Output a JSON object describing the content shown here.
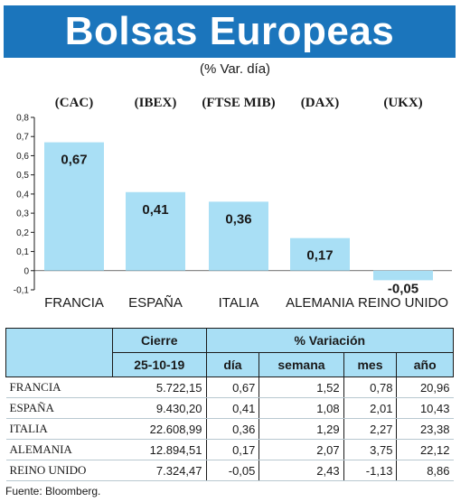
{
  "header": {
    "title": "Bolsas Europeas",
    "subtitle": "(% Var. día)"
  },
  "chart_data": {
    "type": "bar",
    "categories": [
      "FRANCIA",
      "ESPAÑA",
      "ITALIA",
      "ALEMANIA",
      "REINO UNIDO"
    ],
    "indices": [
      "(CAC)",
      "(IBEX)",
      "(FTSE MIB)",
      "(DAX)",
      "(UKX)"
    ],
    "values": [
      0.67,
      0.41,
      0.36,
      0.17,
      -0.05
    ],
    "value_labels": [
      "0,67",
      "0,41",
      "0,36",
      "0,17",
      "-0,05"
    ],
    "yticks": [
      "0,8",
      "0,7",
      "0,6",
      "0,5",
      "0,4",
      "0,3",
      "0,2",
      "0,1",
      "0",
      "-0,1"
    ],
    "ylim": [
      -0.1,
      0.8
    ],
    "bar_color": "#a9dff5",
    "grid": false
  },
  "table": {
    "header_cierre": "Cierre",
    "header_variacion": "% Variación",
    "date": "25-10-19",
    "cols": [
      "día",
      "semana",
      "mes",
      "año"
    ],
    "rows": [
      {
        "name": "FRANCIA",
        "cierre": "5.722,15",
        "dia": "0,67",
        "semana": "1,52",
        "mes": "0,78",
        "ano": "20,96"
      },
      {
        "name": "ESPAÑA",
        "cierre": "9.430,20",
        "dia": "0,41",
        "semana": "1,08",
        "mes": "2,01",
        "ano": "10,43"
      },
      {
        "name": "ITALIA",
        "cierre": "22.608,99",
        "dia": "0,36",
        "semana": "1,29",
        "mes": "2,27",
        "ano": "23,38"
      },
      {
        "name": "ALEMANIA",
        "cierre": "12.894,51",
        "dia": "0,17",
        "semana": "2,07",
        "mes": "3,75",
        "ano": "22,12"
      },
      {
        "name": "REINO UNIDO",
        "cierre": "7.324,47",
        "dia": "-0,05",
        "semana": "2,43",
        "mes": "-1,13",
        "ano": "8,86"
      }
    ]
  },
  "footer": {
    "source": "Fuente: Bloomberg."
  }
}
